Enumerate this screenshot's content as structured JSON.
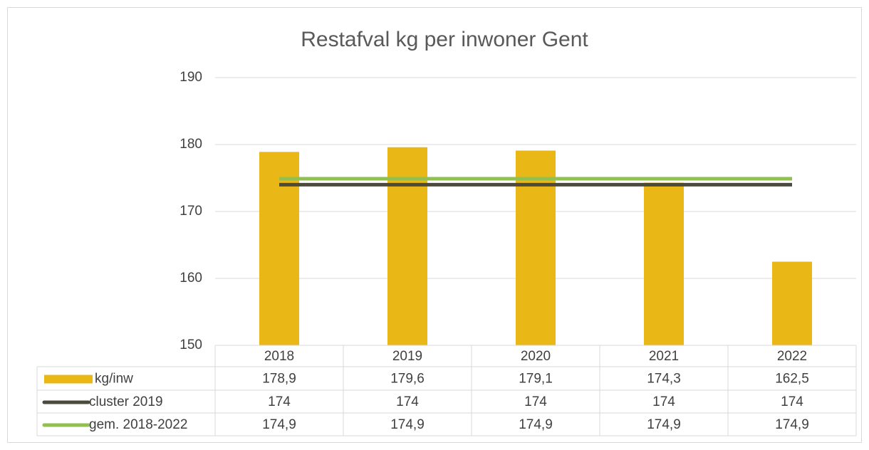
{
  "chart_data": {
    "type": "bar",
    "title": "Restafval kg per inwoner Gent",
    "categories": [
      "2018",
      "2019",
      "2020",
      "2021",
      "2022"
    ],
    "series": [
      {
        "name": "kg/inw",
        "type": "bar",
        "color": "#e9b816",
        "values": [
          178.9,
          179.6,
          179.1,
          174.3,
          162.5
        ],
        "value_labels": [
          "178,9",
          "179,6",
          "179,1",
          "174,3",
          "162,5"
        ]
      },
      {
        "name": "cluster 2019",
        "type": "line",
        "color": "#4b4a3b",
        "values": [
          174,
          174,
          174,
          174,
          174
        ]
      },
      {
        "name": "gem. 2018-2022",
        "type": "line",
        "color": "#92c050",
        "values": [
          174.9,
          174.9,
          174.9,
          174.9,
          174.9
        ],
        "value_labels": [
          "174,9",
          "174,9",
          "174,9",
          "174,9",
          "174,9"
        ]
      }
    ],
    "ylim": [
      150,
      190
    ],
    "yticks": [
      150,
      160,
      170,
      180,
      190
    ],
    "grid": true,
    "data_table": true
  }
}
